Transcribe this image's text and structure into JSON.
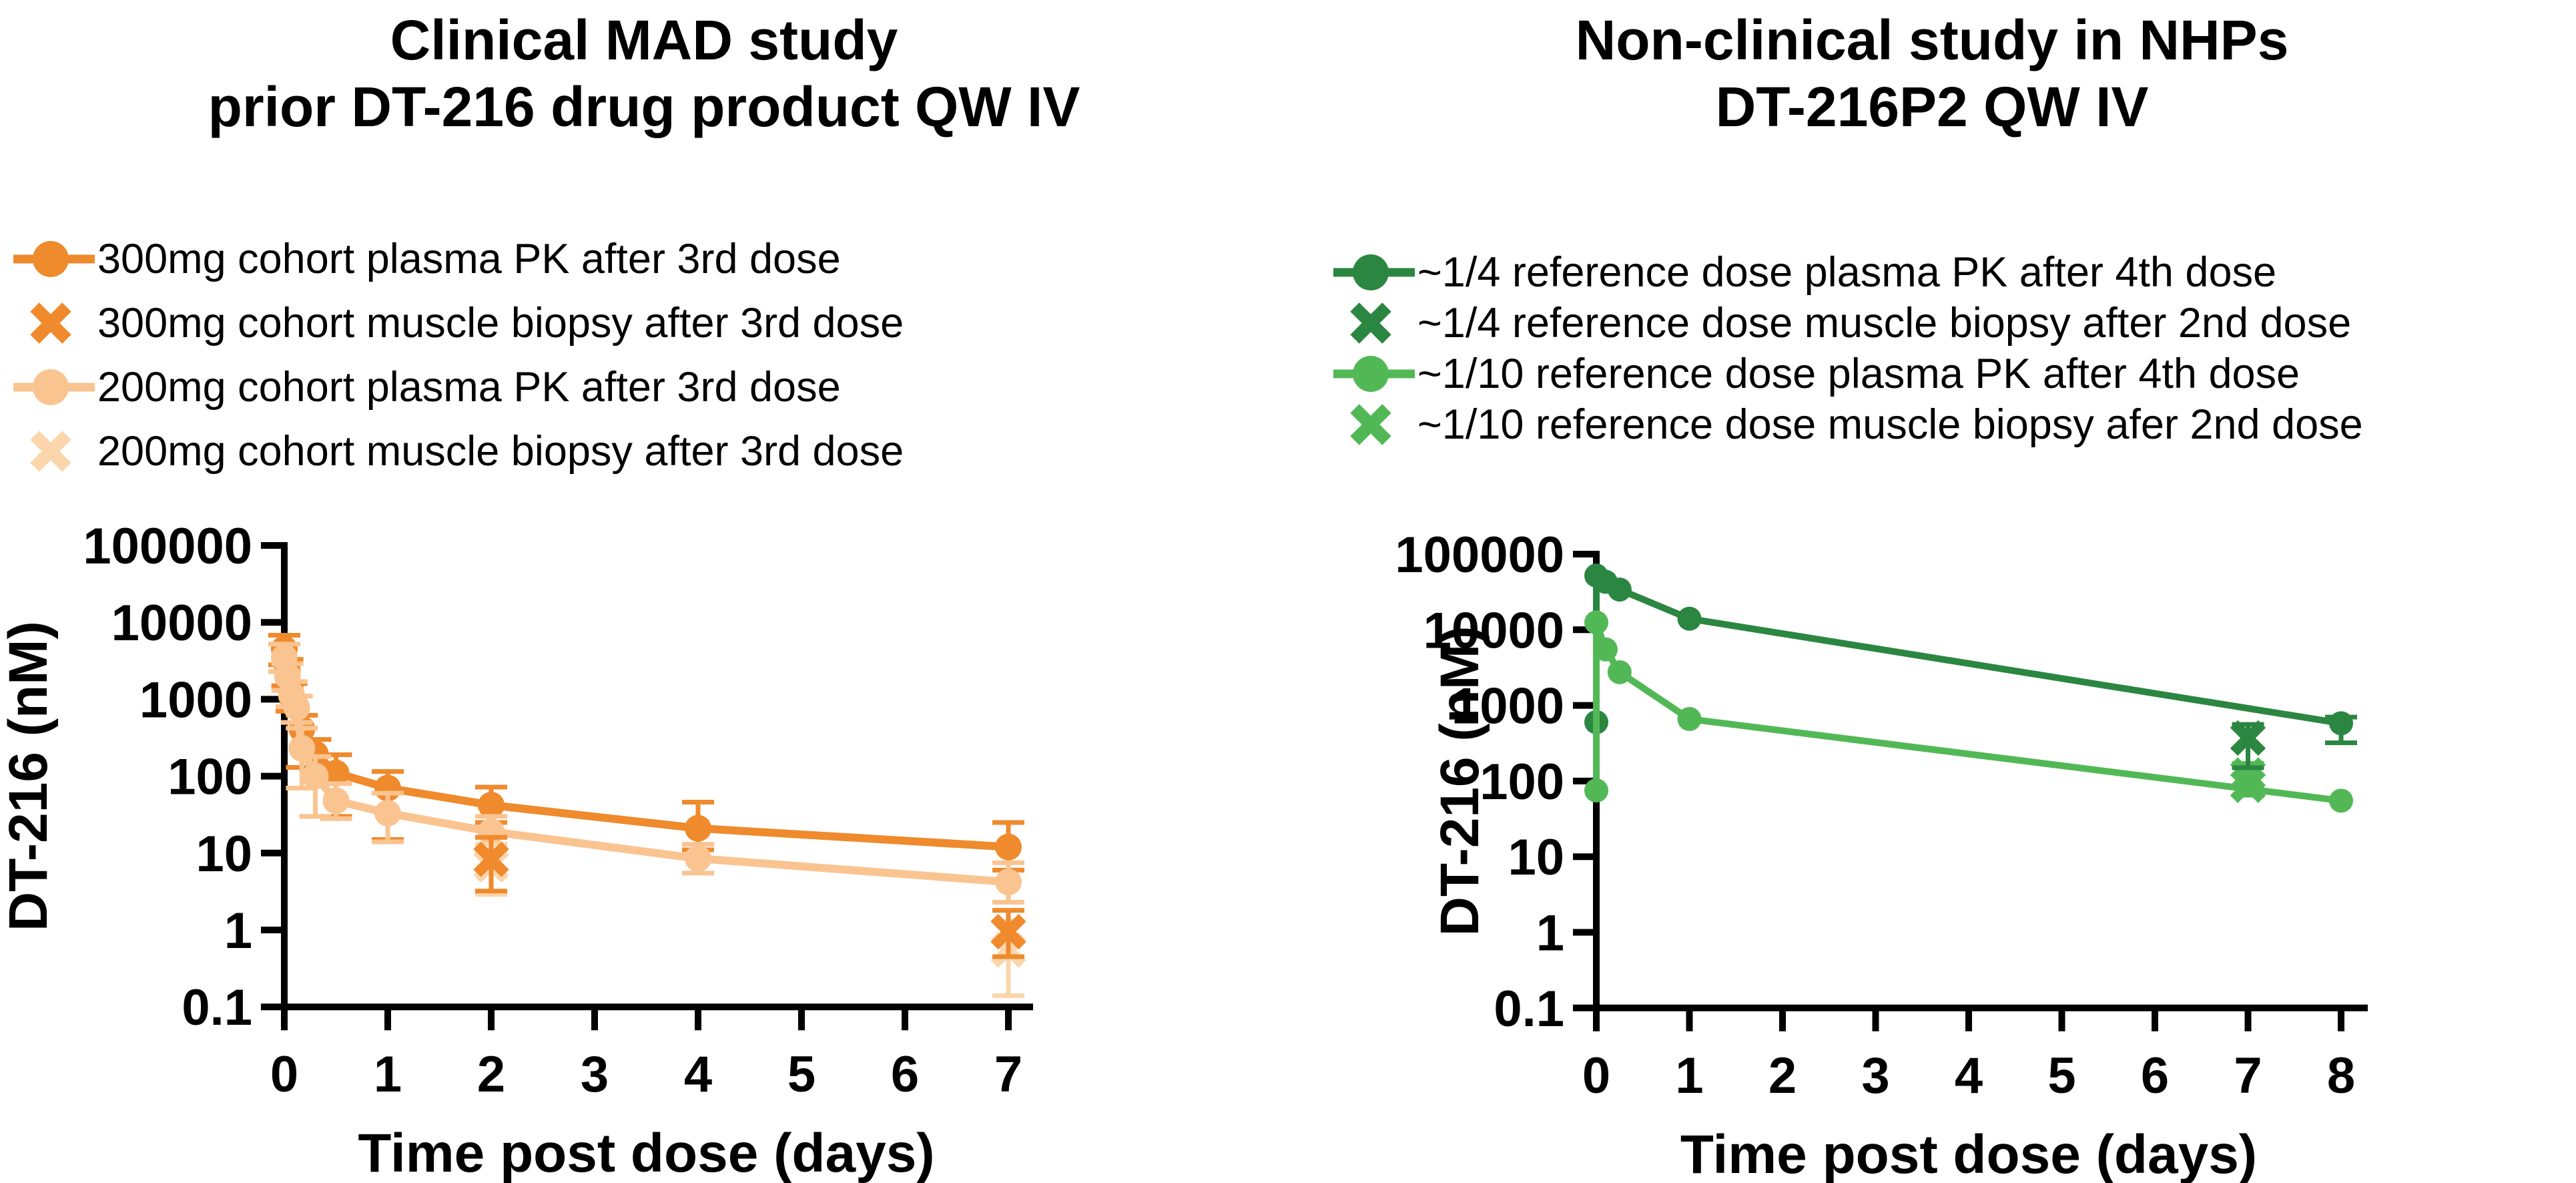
{
  "panels": [
    {
      "title_lines": [
        "Clinical MAD study",
        "prior DT-216 drug product QW IV"
      ],
      "legend": [
        {
          "label": "300mg cohort plasma PK after 3rd dose",
          "marker": "circle-line",
          "color": "#EF8A2D"
        },
        {
          "label": "300mg cohort muscle biopsy after 3rd dose",
          "marker": "x",
          "color": "#EF8A2D"
        },
        {
          "label": "200mg cohort plasma PK after 3rd dose",
          "marker": "circle-line",
          "color": "#FAC491"
        },
        {
          "label": "200mg cohort muscle biopsy after 3rd dose",
          "marker": "x",
          "color": "#FBD6AC"
        }
      ]
    },
    {
      "title_lines": [
        "Non-clinical study in NHPs",
        "DT-216P2 QW IV"
      ],
      "legend": [
        {
          "label": "~1/4 reference dose plasma PK after 4th dose",
          "marker": "circle-line",
          "color": "#2B8641"
        },
        {
          "label": "~1/4 reference dose muscle biopsy after 2nd dose",
          "marker": "x",
          "color": "#2B8641"
        },
        {
          "label": "~1/10 reference dose plasma PK after 4th dose",
          "marker": "circle-line",
          "color": "#52B856"
        },
        {
          "label": "~1/10 reference dose muscle biopsy afer 2nd dose",
          "marker": "x",
          "color": "#52B856"
        }
      ]
    }
  ],
  "chart_data": [
    {
      "type": "line",
      "title": "Clinical MAD study prior DT-216 drug product QW IV",
      "xlabel": "Time post dose (days)",
      "ylabel": "DT-216 (nM)",
      "y_scale": "log10",
      "ylim": [
        0.1,
        100000
      ],
      "y_tick_labels": [
        "100000",
        "10000",
        "1000",
        "100",
        "10",
        "1",
        "0.1"
      ],
      "x_tick_labels": [
        "0",
        "1",
        "2",
        "3",
        "4",
        "5",
        "6",
        "7"
      ],
      "xlim": [
        0,
        7
      ],
      "grid": false,
      "legend_position": "above",
      "series": [
        {
          "name": "300mg cohort plasma PK after 3rd dose",
          "marker": "circle",
          "line": true,
          "color": "#EF8A2D",
          "points": [
            [
              0,
              4500
            ],
            [
              0.03,
              2300
            ],
            [
              0.07,
              1100
            ],
            [
              0.17,
              410
            ],
            [
              0.3,
              195
            ],
            [
              0.5,
              110
            ],
            [
              1,
              70
            ],
            [
              2,
              42
            ],
            [
              4,
              21
            ],
            [
              7,
              12
            ]
          ],
          "error_lo": [
            2800,
            1500,
            700,
            130,
            120,
            30,
            15,
            25,
            11,
            6
          ],
          "error_hi": [
            6800,
            3300,
            1600,
            620,
            300,
            190,
            115,
            72,
            46,
            25
          ]
        },
        {
          "name": "200mg cohort plasma PK after 3rd dose",
          "marker": "circle",
          "line": true,
          "color": "#FAC491",
          "points": [
            [
              0,
              3500
            ],
            [
              0.03,
              2000
            ],
            [
              0.07,
              1150
            ],
            [
              0.12,
              780
            ],
            [
              0.17,
              230
            ],
            [
              0.3,
              100
            ],
            [
              0.5,
              48
            ],
            [
              1,
              33
            ],
            [
              2,
              19
            ],
            [
              4,
              8.5
            ],
            [
              7,
              4.2
            ]
          ],
          "error_lo": [
            2300,
            1300,
            800,
            500,
            70,
            30,
            28,
            14,
            11,
            5.5,
            2.3
          ],
          "error_hi": [
            5200,
            2900,
            1700,
            1100,
            420,
            180,
            80,
            60,
            30,
            13,
            7.5
          ]
        },
        {
          "name": "200mg cohort muscle biopsy after 3rd dose",
          "marker": "x",
          "line": false,
          "color": "#FBD6AC",
          "points": [
            [
              2,
              7
            ],
            [
              7,
              0.55
            ]
          ],
          "error_lo": [
            2.9,
            0.14
          ],
          "error_hi": [
            13,
            1.3
          ]
        },
        {
          "name": "300mg cohort muscle biopsy after 3rd dose",
          "marker": "x",
          "line": false,
          "color": "#EF8A2D",
          "points": [
            [
              2,
              8.3
            ],
            [
              7,
              0.95
            ]
          ],
          "error_lo": [
            3.2,
            0.45
          ],
          "error_hi": [
            16,
            1.8
          ]
        }
      ]
    },
    {
      "type": "line",
      "title": "Non-clinical study in NHPs DT-216P2 QW IV",
      "xlabel": "Time post dose (days)",
      "ylabel": "DT-216 (nM)",
      "y_scale": "log10",
      "ylim": [
        0.1,
        100000
      ],
      "y_tick_labels": [
        "100000",
        "10000",
        "1000",
        "100",
        "10",
        "1",
        "0.1"
      ],
      "x_tick_labels": [
        "0",
        "1",
        "2",
        "3",
        "4",
        "5",
        "6",
        "7",
        "8"
      ],
      "xlim": [
        0,
        8
      ],
      "grid": false,
      "legend_position": "above",
      "series": [
        {
          "name": "~1/4 reference dose plasma PK after 4th dose",
          "marker": "circle",
          "line": true,
          "color": "#2B8641",
          "points": [
            [
              0,
              600
            ],
            [
              0,
              52000
            ],
            [
              0.1,
              43000
            ],
            [
              0.25,
              34000
            ],
            [
              1,
              14000
            ],
            [
              8,
              580
            ]
          ],
          "error_lo": [
            null,
            null,
            null,
            null,
            null,
            320
          ],
          "error_hi": [
            null,
            null,
            null,
            null,
            null,
            700
          ]
        },
        {
          "name": "~1/10 reference dose plasma PK after 4th dose",
          "marker": "circle",
          "line": true,
          "color": "#52B856",
          "points": [
            [
              0,
              75
            ],
            [
              0,
              12500
            ],
            [
              0.1,
              5500
            ],
            [
              0.25,
              2750
            ],
            [
              1,
              660
            ],
            [
              8,
              55
            ]
          ],
          "error_lo": [
            null,
            null,
            null,
            null,
            null,
            null
          ],
          "error_hi": [
            null,
            null,
            null,
            null,
            null,
            null
          ]
        },
        {
          "name": "~1/10 reference dose muscle biopsy afer 2nd dose",
          "marker": "x",
          "line": false,
          "color": "#52B856",
          "points": [
            [
              7,
              120
            ],
            [
              7,
              88
            ]
          ],
          "error_lo": [
            65,
            null
          ],
          "error_hi": [
            170,
            null
          ]
        },
        {
          "name": "~1/4 reference dose muscle biopsy after 2nd dose",
          "marker": "x",
          "line": false,
          "color": "#2B8641",
          "points": [
            [
              7,
              370
            ]
          ],
          "error_lo": [
            150
          ],
          "error_hi": [
            560
          ]
        }
      ]
    }
  ]
}
